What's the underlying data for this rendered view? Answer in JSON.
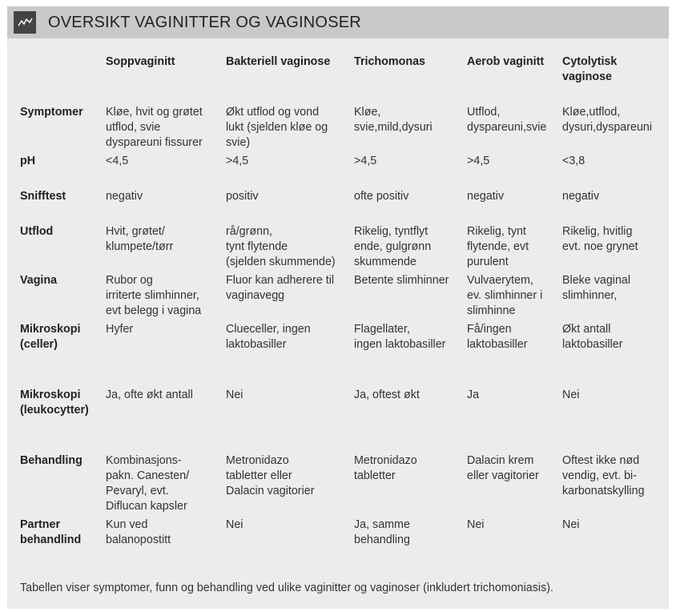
{
  "header": {
    "title": "OVERSIKT VAGINITTER OG VAGINOSER"
  },
  "table": {
    "columns": [
      "Soppvaginitt",
      "Bakteriell vaginose",
      "Trichomonas",
      "Aerob vaginitt",
      "Cytolytisk\nvaginose"
    ],
    "rows": [
      {
        "label": "Symptomer",
        "cells": [
          "Kløe, hvit og grøtet\nutflod, svie\ndyspareuni fissurer",
          "Økt utflod og vond\nlukt (sjelden kløe og\nsvie)",
          "Kløe,\nsvie,mild,dysuri",
          "Utflod,\ndyspareuni,svie",
          "Kløe,utflod,\ndysuri,dyspareuni"
        ]
      },
      {
        "label": "pH",
        "cells": [
          "<4,5",
          ">4,5",
          ">4,5",
          ">4,5",
          "<3,8"
        ]
      },
      {
        "label": "Snifftest",
        "cells": [
          "negativ",
          "positiv",
          "ofte positiv",
          "negativ",
          "negativ"
        ]
      },
      {
        "label": "Utflod",
        "cells": [
          "Hvit, grøtet/\nklumpete/tørr",
          "rå/grønn,\ntynt flytende\n(sjelden skummende)",
          "Rikelig, tyntflyt\nende, gulgrønn\nskummende",
          "Rikelig, tynt\nflytende, evt\npurulent",
          "Rikelig, hvitlig\nevt. noe grynet"
        ]
      },
      {
        "label": "Vagina",
        "cells": [
          "Rubor og\nirriterte slimhinner,\nevt belegg i vagina",
          "Fluor kan adherere til\n vaginavegg",
          "Betente slimhinner",
          "Vulvaerytem,\nev. slimhinner i\nslimhinne",
          "Bleke vaginal\nslimhinner,"
        ]
      },
      {
        "label": "Mikroskopi\n(celler)",
        "cells": [
          "Hyfer",
          "Clueceller, ingen\nlaktobasiller",
          "Flagellater,\ningen laktobasiller",
          "Få/ingen\nlaktobasiller",
          "Økt antall\nlaktobasiller"
        ]
      },
      {
        "label": "Mikroskopi\n(leukocytter)",
        "cells": [
          "Ja, ofte økt antall",
          "Nei",
          "Ja, oftest økt",
          "Ja",
          "Nei"
        ]
      },
      {
        "label": "Behandling",
        "cells": [
          "Kombinasjons-\npakn. Canesten/\nPevaryl, evt.\nDiflucan kapsler",
          "Metronidazo\ntabletter eller\nDalacin vagitorier",
          "Metronidazo\ntabletter",
          "Dalacin krem\neller vagitorier",
          "Oftest ikke nød\nvendig, evt. bi-\nkarbonatskylling"
        ]
      },
      {
        "label": "Partner\nbehandlind",
        "cells": [
          "Kun ved\nbalanopostitt",
          "Nei",
          "Ja, samme\nbehandling",
          "Nei",
          "Nei"
        ]
      }
    ]
  },
  "footer": {
    "caption": "Tabellen viser symptomer, funn og behandling ved ulike vaginitter og vaginoser (inkludert trichomoniasis)."
  }
}
